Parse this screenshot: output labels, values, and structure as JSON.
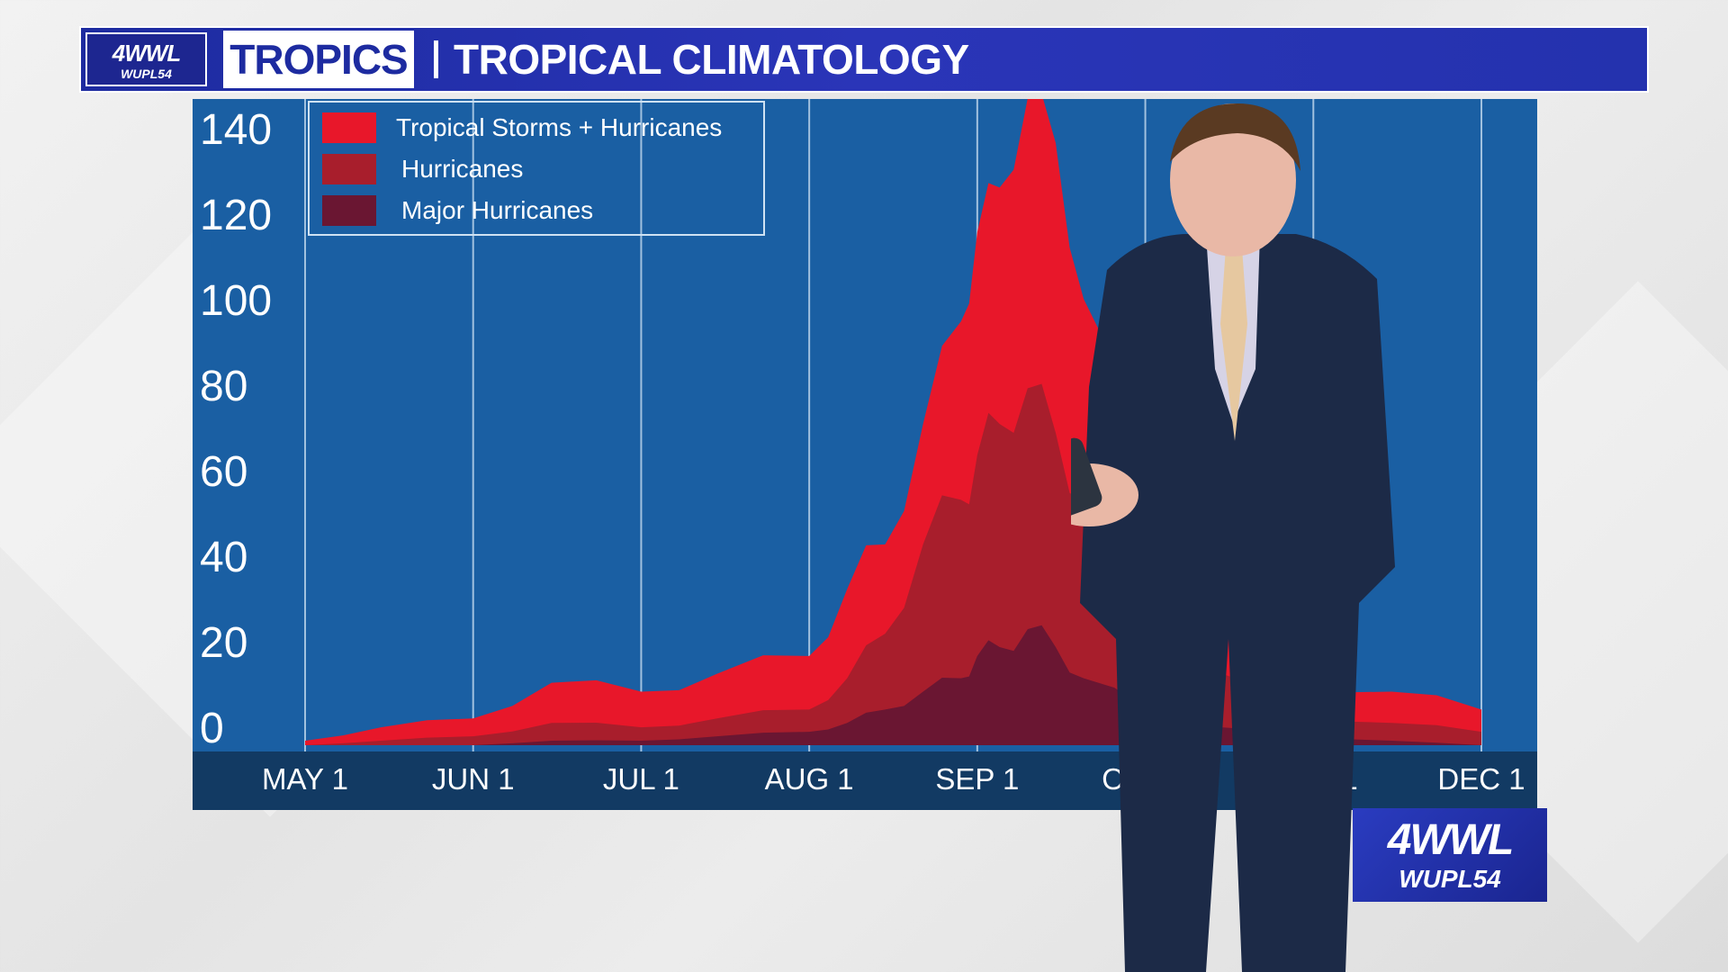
{
  "header": {
    "logo_main": "4WWL",
    "logo_sub": "WUPL54",
    "segment": "TROPICS",
    "title": "TROPICAL CLIMATOLOGY"
  },
  "corner_logo": {
    "main": "4WWL",
    "sub": "WUPL54"
  },
  "colors": {
    "panel": "#1a5fa3",
    "axis_band": "#123a63",
    "tropical": "#e8172a",
    "hurricanes": "#a81e2c",
    "major": "#6a1632",
    "gridline": "#cfe2f3"
  },
  "chart_data": {
    "type": "area",
    "title": "TROPICAL CLIMATOLOGY",
    "xlabel": "",
    "ylabel": "",
    "ylim": [
      0,
      140
    ],
    "yticks": [
      "0",
      "20",
      "40",
      "60",
      "80",
      "100",
      "120",
      "140"
    ],
    "xticks": [
      "MAY 1",
      "JUN 1",
      "JUL 1",
      "AUG 1",
      "SEP 1",
      "OCT 1",
      "NOV 1",
      "DEC 1"
    ],
    "grid": true,
    "legend_position": "top-left",
    "x": [
      "MAY 1",
      "MAY 15",
      "JUN 1",
      "JUN 15",
      "JUL 1",
      "JUL 15",
      "AUG 1",
      "AUG 8",
      "AUG 15",
      "AUG 22",
      "AUG 29",
      "SEP 1",
      "SEP 5",
      "SEP 10",
      "SEP 15",
      "SEP 20",
      "OCT 1",
      "OCT 15",
      "NOV 1",
      "NOV 15",
      "DEC 1"
    ],
    "series": [
      {
        "name": "Tropical Storms + Hurricanes",
        "values": [
          1,
          4,
          6,
          14,
          12,
          16,
          20,
          35,
          45,
          72,
          95,
          115,
          125,
          145,
          135,
          100,
          60,
          30,
          15,
          12,
          8
        ]
      },
      {
        "name": "Hurricanes",
        "values": [
          0,
          1,
          2,
          5,
          4,
          6,
          8,
          15,
          25,
          45,
          55,
          65,
          72,
          80,
          70,
          55,
          35,
          16,
          7,
          5,
          3
        ]
      },
      {
        "name": "Major Hurricanes",
        "values": [
          0,
          0,
          0,
          1,
          1,
          2,
          3,
          5,
          8,
          12,
          15,
          20,
          22,
          26,
          22,
          15,
          8,
          4,
          2,
          1,
          0
        ]
      }
    ]
  }
}
